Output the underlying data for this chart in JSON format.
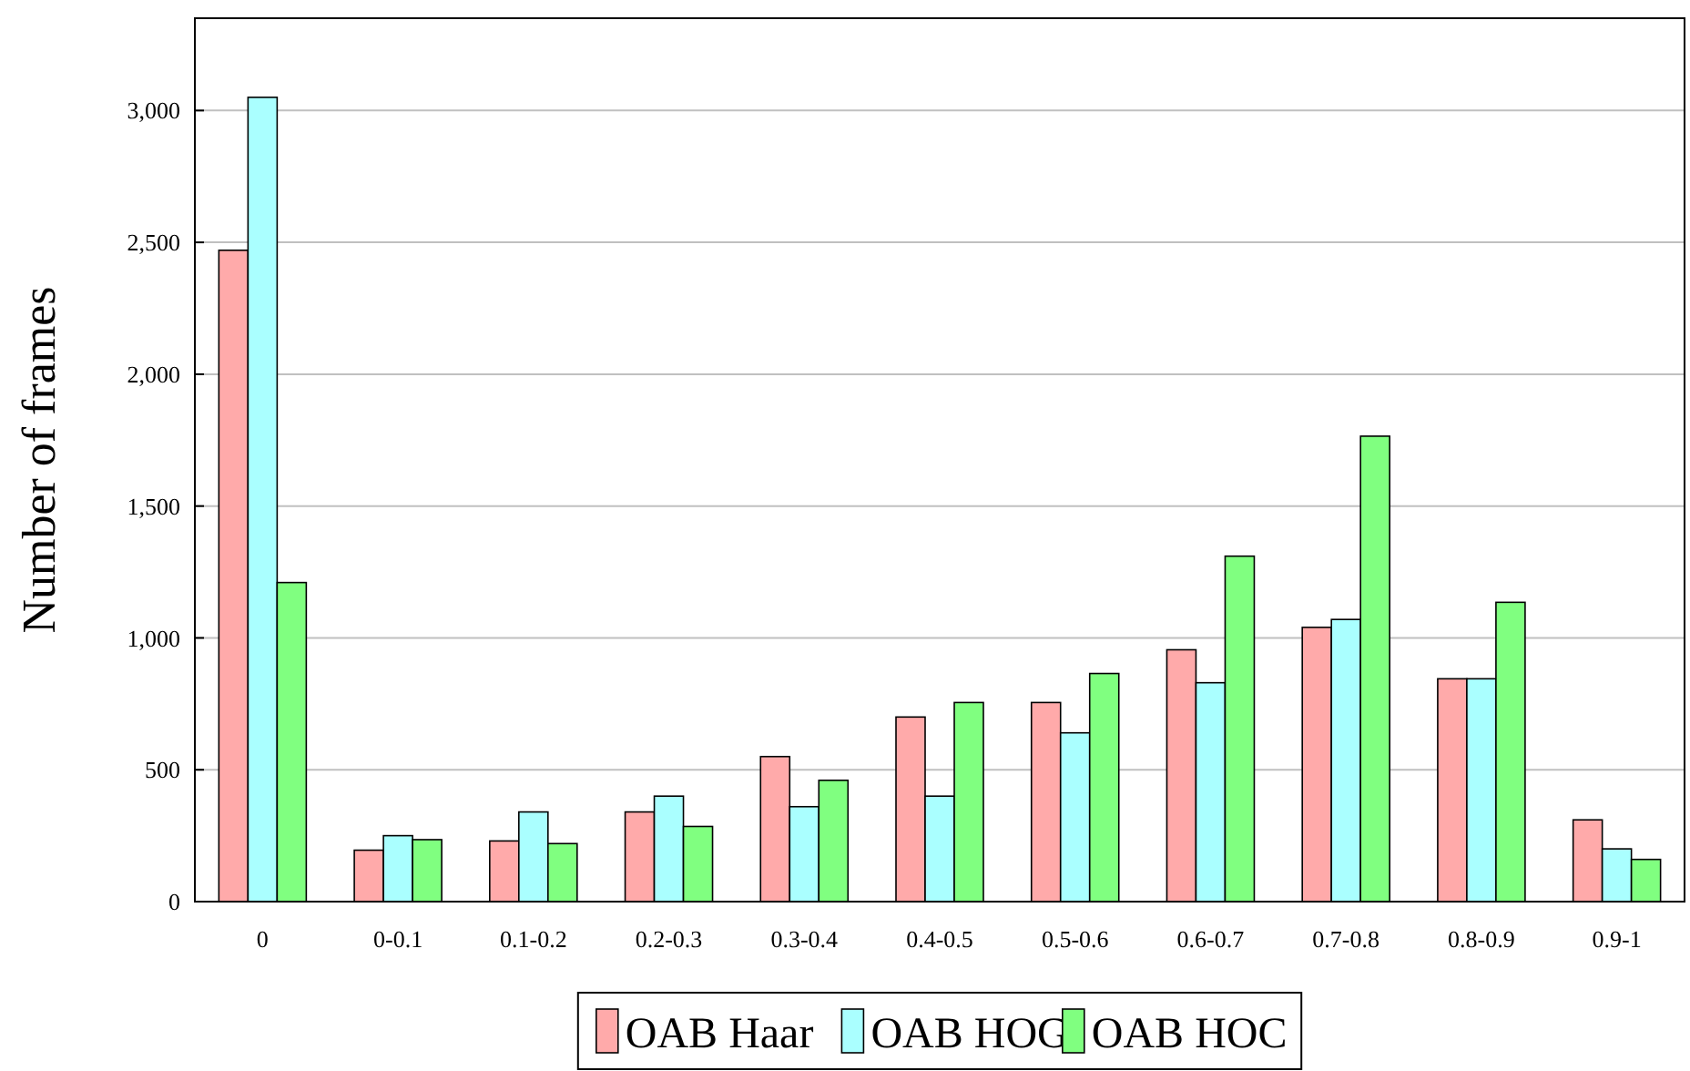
{
  "chart_data": {
    "type": "bar",
    "ylabel": "Number of frames",
    "categories": [
      "0",
      "0-0.1",
      "0.1-0.2",
      "0.2-0.3",
      "0.3-0.4",
      "0.4-0.5",
      "0.5-0.6",
      "0.6-0.7",
      "0.7-0.8",
      "0.8-0.9",
      "0.9-1"
    ],
    "series": [
      {
        "name": "OAB Haar",
        "color": "#ffaaaa",
        "values": [
          2470,
          195,
          230,
          340,
          550,
          700,
          755,
          955,
          1040,
          845,
          310
        ]
      },
      {
        "name": "OAB HOG",
        "color": "#aaffff",
        "values": [
          3050,
          250,
          340,
          400,
          360,
          400,
          640,
          830,
          1070,
          845,
          200
        ]
      },
      {
        "name": "OAB HOC",
        "color": "#80ff80",
        "values": [
          1210,
          235,
          220,
          285,
          460,
          755,
          865,
          1310,
          1765,
          1135,
          160
        ]
      }
    ],
    "ylim": [
      0,
      3350
    ],
    "yticks": [
      0,
      500,
      {
        "value": 1000,
        "label": "1,000"
      },
      {
        "value": 1500,
        "label": "1,500"
      },
      {
        "value": 2000,
        "label": "2,000"
      },
      {
        "value": 2500,
        "label": "2,500"
      },
      {
        "value": 3000,
        "label": "3,000"
      }
    ],
    "grid": "y",
    "legend": "bottom"
  }
}
